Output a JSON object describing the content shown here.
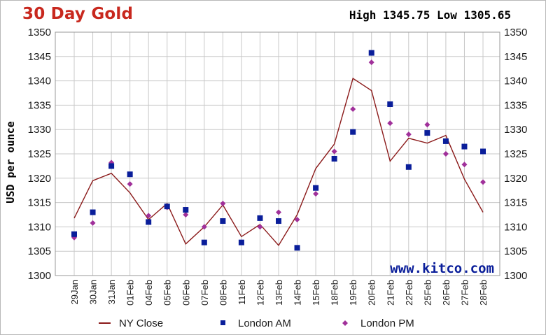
{
  "header": {
    "title": "30 Day Gold",
    "high_low": "High 1345.75 Low 1305.65"
  },
  "watermark": "www.kitco.com",
  "colors": {
    "title": "#c8281e",
    "ny_close": "#8b1a1a",
    "london_am": "#0a1e9a",
    "london_pm": "#a0309a",
    "grid": "#c8c8c8"
  },
  "chart_data": {
    "type": "line",
    "ylabel": "USD per ounce",
    "xlabel": "",
    "ylim": [
      1300,
      1350
    ],
    "yticks": [
      "1300",
      "1305",
      "1310",
      "1315",
      "1320",
      "1325",
      "1330",
      "1335",
      "1340",
      "1345",
      "1350"
    ],
    "grid": true,
    "categories": [
      "29Jan",
      "30Jan",
      "31Jan",
      "01Feb",
      "04Feb",
      "05Feb",
      "06Feb",
      "07Feb",
      "08Feb",
      "11Feb",
      "12Feb",
      "13Feb",
      "14Feb",
      "15Feb",
      "18Feb",
      "19Feb",
      "20Feb",
      "21Feb",
      "22Feb",
      "25Feb",
      "26Feb",
      "27Feb",
      "28Feb"
    ],
    "series": [
      {
        "name": "NY Close",
        "style": "line",
        "values": [
          1311.8,
          1319.5,
          1321.0,
          1317.0,
          1311.5,
          1314.8,
          1306.5,
          1310.0,
          1314.5,
          1308.0,
          1310.5,
          1306.2,
          1312.5,
          1322.0,
          1327.0,
          1340.5,
          1338.0,
          1323.5,
          1328.2,
          1327.2,
          1328.8,
          1319.8,
          1313.0
        ]
      },
      {
        "name": "London AM",
        "style": "square",
        "values": [
          1308.5,
          1313.0,
          1322.5,
          1320.8,
          1311.0,
          1314.2,
          1313.5,
          1306.8,
          1311.2,
          1306.8,
          1311.8,
          1311.2,
          1305.7,
          1318.0,
          1324.0,
          1329.5,
          1345.75,
          1335.2,
          1322.3,
          1329.3,
          1327.6,
          1326.5,
          1325.5
        ]
      },
      {
        "name": "London PM",
        "style": "diamond",
        "values": [
          1307.8,
          1310.8,
          1323.2,
          1318.8,
          1312.3,
          1314.0,
          1312.5,
          1310.0,
          1314.8,
          1306.8,
          1310.0,
          1313.0,
          1311.5,
          1316.8,
          1325.5,
          1334.2,
          1343.8,
          1331.3,
          1329.0,
          1331.0,
          1325.0,
          1322.8,
          1319.2
        ]
      }
    ],
    "legend_position": "bottom"
  },
  "legend": [
    {
      "label": "NY Close",
      "icon": "line-swatch"
    },
    {
      "label": "London AM",
      "icon": "square-marker"
    },
    {
      "label": "London PM",
      "icon": "diamond-marker"
    }
  ]
}
